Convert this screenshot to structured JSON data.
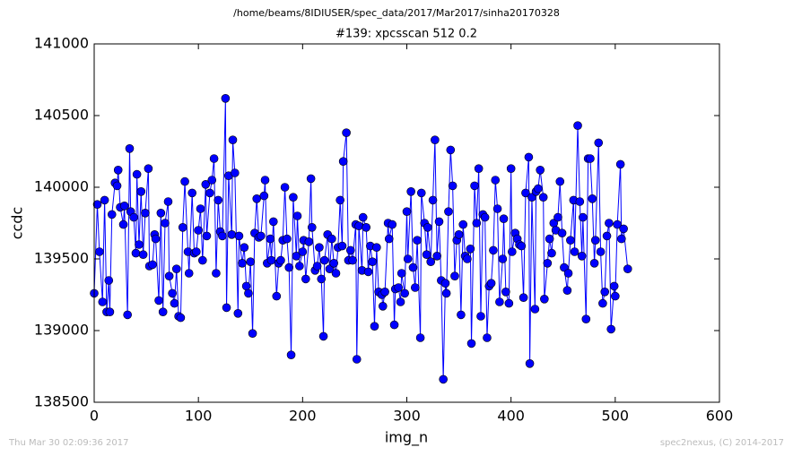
{
  "chart_data": {
    "type": "line",
    "suptitle": "/home/beams/8IDIUSER/spec_data/2017/Mar2017/sinha20170328",
    "title": "#139: xpcsscan 512 0.2",
    "xlabel": "img_n",
    "ylabel": "ccdc",
    "footer_left": "Thu Mar 30 02:09:36 2017",
    "footer_right": "spec2nexus, (C) 2014-2017",
    "xlim": [
      0,
      600
    ],
    "xticks": [
      0,
      100,
      200,
      300,
      400,
      500,
      600
    ],
    "ylim": [
      138500,
      141000
    ],
    "yticks": [
      138500,
      139000,
      139500,
      140000,
      140500,
      141000
    ],
    "marker": "circle",
    "series": [
      {
        "color": "#0000ff",
        "x": [
          0,
          3,
          5,
          8,
          10,
          12,
          14,
          15,
          17,
          20,
          22,
          23,
          25,
          28,
          29,
          32,
          34,
          35,
          38,
          40,
          41,
          43,
          45,
          47,
          49,
          52,
          53,
          56,
          58,
          59,
          62,
          64,
          66,
          68,
          71,
          72,
          75,
          77,
          79,
          81,
          83,
          85,
          87,
          90,
          91,
          94,
          96,
          98,
          100,
          102,
          104,
          107,
          108,
          111,
          113,
          115,
          117,
          119,
          121,
          123,
          126,
          127,
          129,
          132,
          133,
          135,
          138,
          139,
          142,
          144,
          146,
          148,
          150,
          152,
          154,
          156,
          158,
          160,
          163,
          164,
          166,
          169,
          170,
          172,
          175,
          177,
          179,
          181,
          183,
          185,
          187,
          189,
          191,
          194,
          195,
          197,
          200,
          201,
          203,
          206,
          208,
          209,
          212,
          214,
          216,
          218,
          220,
          221,
          224,
          226,
          228,
          230,
          232,
          234,
          236,
          238,
          239,
          242,
          244,
          246,
          248,
          251,
          252,
          254,
          257,
          258,
          261,
          263,
          265,
          267,
          269,
          271,
          273,
          276,
          277,
          279,
          282,
          283,
          286,
          288,
          289,
          292,
          294,
          295,
          298,
          300,
          301,
          304,
          306,
          308,
          310,
          313,
          314,
          317,
          319,
          320,
          323,
          325,
          327,
          329,
          331,
          333,
          335,
          337,
          338,
          340,
          342,
          344,
          346,
          348,
          350,
          352,
          354,
          356,
          358,
          361,
          362,
          365,
          367,
          369,
          371,
          373,
          375,
          377,
          379,
          381,
          383,
          385,
          387,
          389,
          392,
          393,
          395,
          398,
          400,
          401,
          404,
          406,
          408,
          410,
          412,
          414,
          417,
          418,
          420,
          423,
          424,
          426,
          428,
          431,
          432,
          435,
          437,
          439,
          441,
          443,
          445,
          447,
          449,
          451,
          454,
          455,
          457,
          460,
          461,
          464,
          466,
          468,
          469,
          472,
          474,
          476,
          478,
          480,
          481,
          484,
          486,
          488,
          490,
          492,
          494,
          496,
          499,
          500,
          502,
          505,
          506,
          508,
          512
        ],
        "values": [
          139260,
          139880,
          139550,
          139200,
          139910,
          139130,
          139350,
          139130,
          139810,
          140030,
          140010,
          140120,
          139860,
          139740,
          139870,
          139110,
          140270,
          139830,
          139790,
          139540,
          140090,
          139600,
          139970,
          139530,
          139820,
          140130,
          139450,
          139460,
          139670,
          139640,
          139210,
          139820,
          139130,
          139750,
          139900,
          139380,
          139260,
          139190,
          139430,
          139100,
          139090,
          139720,
          140040,
          139550,
          139400,
          139960,
          139540,
          139550,
          139700,
          139850,
          139490,
          140020,
          139660,
          139960,
          140050,
          140200,
          139400,
          139910,
          139690,
          139660,
          140620,
          139160,
          140080,
          139670,
          140330,
          140100,
          139120,
          139660,
          139470,
          139580,
          139310,
          139260,
          139480,
          138980,
          139680,
          139920,
          139650,
          139660,
          139940,
          140050,
          139470,
          139640,
          139490,
          139760,
          139240,
          139470,
          139490,
          139630,
          140000,
          139640,
          139440,
          138830,
          139930,
          139520,
          139800,
          139450,
          139550,
          139630,
          139360,
          139620,
          140060,
          139720,
          139420,
          139450,
          139580,
          139360,
          138960,
          139490,
          139670,
          139430,
          139640,
          139470,
          139400,
          139580,
          139910,
          139590,
          140180,
          140380,
          139490,
          139560,
          139490,
          139740,
          138800,
          139730,
          139420,
          139790,
          139720,
          139410,
          139590,
          139480,
          139030,
          139580,
          139270,
          139250,
          139170,
          139270,
          139750,
          139640,
          139740,
          139040,
          139290,
          139300,
          139200,
          139400,
          139260,
          139830,
          139500,
          139970,
          139440,
          139300,
          139630,
          138950,
          139960,
          139750,
          139530,
          139720,
          139480,
          139910,
          140330,
          139520,
          139760,
          139350,
          138660,
          139330,
          139260,
          139830,
          140260,
          140010,
          139380,
          139630,
          139670,
          139110,
          139740,
          139520,
          139500,
          139570,
          138910,
          140010,
          139750,
          140130,
          139100,
          139810,
          139790,
          138950,
          139310,
          139330,
          139560,
          140050,
          139850,
          139200,
          139500,
          139780,
          139270,
          139190,
          140130,
          139550,
          139680,
          139640,
          139600,
          139590,
          139230,
          139960,
          140210,
          138770,
          139930,
          139150,
          139970,
          139990,
          140120,
          139930,
          139220,
          139470,
          139640,
          139540,
          139750,
          139700,
          139790,
          140040,
          139680,
          139440,
          139280,
          139400,
          139630,
          139910,
          139550,
          140430,
          139900,
          139520,
          139790,
          139080,
          140200,
          140200,
          139920,
          139470,
          139630,
          140310,
          139550,
          139190,
          139270,
          139660,
          139750,
          139010,
          139310,
          139240,
          139740,
          140160,
          139640,
          139710,
          139430
        ]
      }
    ]
  }
}
